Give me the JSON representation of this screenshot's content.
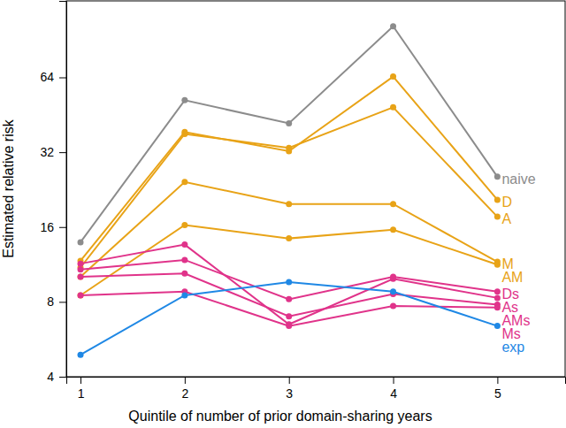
{
  "chart_data": {
    "type": "line",
    "x_label": "Quintile of number of prior domain-sharing years",
    "y_label": "Estimated relative risk",
    "x": [
      1,
      2,
      3,
      4,
      5
    ],
    "xlim": [
      0.864,
      5.65
    ],
    "xticks": [
      1,
      2,
      3,
      4,
      5
    ],
    "ylim": [
      4,
      130
    ],
    "yticks": [
      4,
      8,
      16,
      32,
      64
    ],
    "log": "y",
    "marker": "circle",
    "line_style": "solid",
    "series": [
      {
        "name": "naive",
        "color": "#8c8c8c",
        "values": [
          13.9,
          51.8,
          41.8,
          102.7,
          25.5
        ]
      },
      {
        "name": "D",
        "color": "#e8a317",
        "values": [
          11.7,
          38.6,
          32.3,
          64.5,
          20.6
        ]
      },
      {
        "name": "A",
        "color": "#e8a317",
        "values": [
          11.0,
          37.9,
          33.3,
          48.5,
          17.6
        ]
      },
      {
        "name": "M",
        "color": "#e8a317",
        "values": [
          10.1,
          24.3,
          19.8,
          19.8,
          11.6
        ]
      },
      {
        "name": "AM",
        "color": "#e8a317",
        "values": [
          8.5,
          16.3,
          14.4,
          15.6,
          11.3
        ]
      },
      {
        "name": "Ds",
        "color": "#e0338a",
        "values": [
          10.8,
          11.8,
          8.2,
          10.1,
          8.8
        ]
      },
      {
        "name": "As",
        "color": "#e0338a",
        "values": [
          11.4,
          13.6,
          6.5,
          9.9,
          8.3
        ]
      },
      {
        "name": "AMs",
        "color": "#e0338a",
        "values": [
          10.1,
          10.4,
          7.0,
          8.6,
          7.8
        ]
      },
      {
        "name": "Ms",
        "color": "#e0338a",
        "values": [
          8.5,
          8.8,
          6.4,
          7.7,
          7.6
        ]
      },
      {
        "name": "exp",
        "color": "#1f88e5",
        "values": [
          4.9,
          8.5,
          9.6,
          8.8,
          6.4
        ]
      }
    ]
  }
}
